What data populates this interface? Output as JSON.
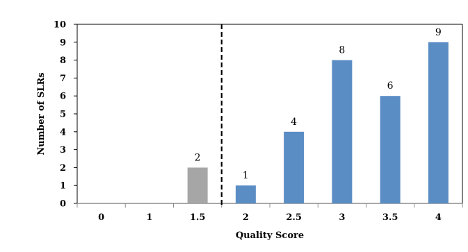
{
  "chart_data": {
    "type": "bar",
    "categories": [
      "0",
      "1",
      "1.5",
      "2",
      "2.5",
      "3",
      "3.5",
      "4"
    ],
    "values": [
      0,
      0,
      2,
      1,
      4,
      8,
      6,
      9
    ],
    "data_labels": [
      "",
      "",
      "2",
      "1",
      "4",
      "8",
      "6",
      "9"
    ],
    "bar_colors": [
      "#A6A6A6",
      "#A6A6A6",
      "#A6A6A6",
      "#5B8DC5",
      "#5B8DC5",
      "#5B8DC5",
      "#5B8DC5",
      "#5B8DC5"
    ],
    "xlabel": "Quality Score",
    "ylabel": "Number of SLRs",
    "ylim": [
      0,
      10
    ],
    "yticks": [
      "0",
      "1",
      "2",
      "3",
      "4",
      "5",
      "6",
      "7",
      "8",
      "9",
      "10"
    ],
    "grid": false,
    "threshold_line_between": [
      "1.5",
      "2"
    ]
  }
}
